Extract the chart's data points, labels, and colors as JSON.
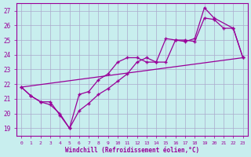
{
  "title": "",
  "xlabel": "Windchill (Refroidissement éolien,°C)",
  "ylabel": "",
  "bg_color": "#c8eeee",
  "line_color": "#990099",
  "grid_color": "#aaaacc",
  "xlim": [
    -0.5,
    23.5
  ],
  "ylim": [
    18.5,
    27.5
  ],
  "xticks": [
    0,
    1,
    2,
    3,
    4,
    5,
    6,
    7,
    8,
    9,
    10,
    11,
    12,
    13,
    14,
    15,
    16,
    17,
    18,
    19,
    20,
    21,
    22,
    23
  ],
  "yticks": [
    19,
    20,
    21,
    22,
    23,
    24,
    25,
    26,
    27
  ],
  "line1_x": [
    0,
    1,
    2,
    3,
    4,
    5,
    6,
    7,
    8,
    9,
    10,
    11,
    12,
    13,
    14,
    15,
    16,
    17,
    18,
    19,
    20,
    22,
    23
  ],
  "line1_y": [
    21.8,
    21.2,
    20.8,
    20.8,
    19.9,
    19.0,
    21.3,
    21.5,
    22.3,
    22.7,
    23.5,
    23.8,
    23.8,
    23.5,
    23.5,
    25.1,
    25.0,
    24.9,
    25.1,
    27.2,
    26.5,
    25.8,
    23.8
  ],
  "line2_x": [
    0,
    1,
    2,
    3,
    4,
    5,
    6,
    7,
    8,
    9,
    10,
    11,
    12,
    13,
    14,
    15,
    16,
    17,
    18,
    19,
    20,
    21,
    22,
    23
  ],
  "line2_y": [
    21.8,
    21.2,
    20.8,
    20.6,
    20.0,
    19.0,
    20.2,
    20.7,
    21.3,
    21.7,
    22.2,
    22.7,
    23.5,
    23.8,
    23.5,
    23.5,
    25.0,
    25.0,
    24.9,
    26.5,
    26.4,
    25.8,
    25.8,
    23.8
  ],
  "line3_x": [
    0,
    23
  ],
  "line3_y": [
    21.8,
    23.8
  ],
  "marker_size": 2.5,
  "linewidth": 0.9
}
